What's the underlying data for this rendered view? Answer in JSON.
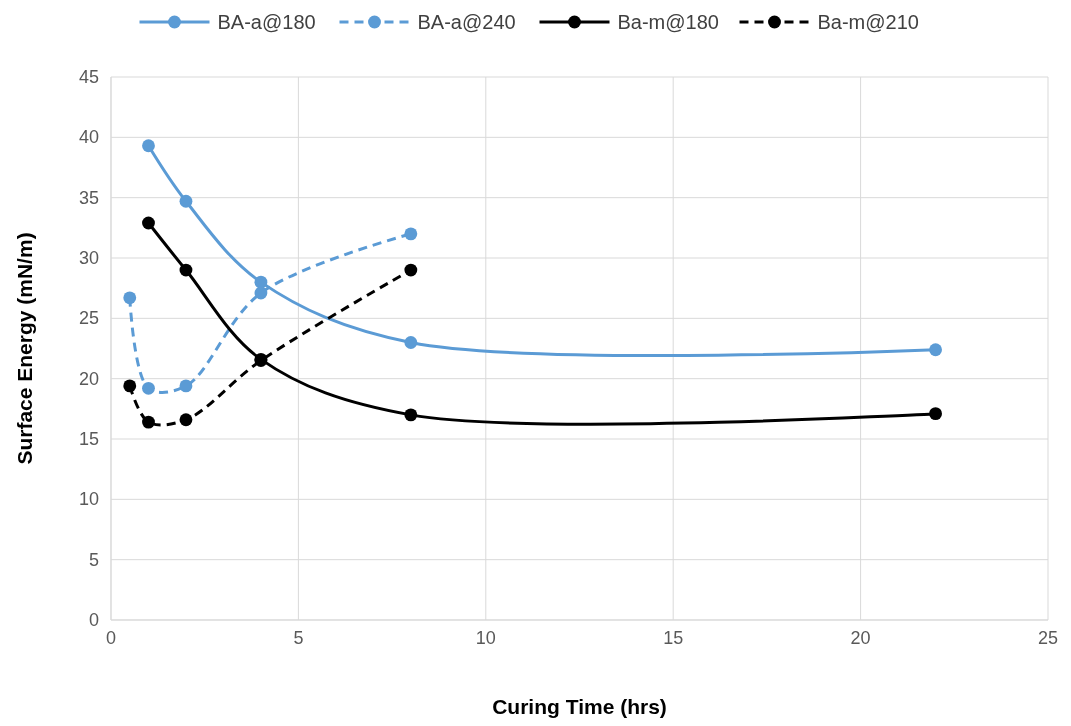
{
  "chart_data": {
    "type": "line",
    "xlabel": "Curing Time (hrs)",
    "ylabel": "Surface Energy (mN/m)",
    "xlim": [
      0,
      25
    ],
    "xticks": [
      0,
      5,
      10,
      15,
      20,
      25
    ],
    "ylim": [
      0,
      45
    ],
    "yticks": [
      0,
      5,
      10,
      15,
      20,
      25,
      30,
      35,
      40,
      45
    ],
    "grid": true,
    "legend": "top",
    "marker": "circle",
    "series": [
      {
        "name": "BA-a@180",
        "color": "#5b9bd5",
        "line_style": "solid",
        "x": [
          1,
          2,
          4,
          8,
          22
        ],
        "values": [
          39.3,
          34.7,
          28.0,
          23.0,
          22.4
        ]
      },
      {
        "name": "BA-a@240",
        "color": "#5b9bd5",
        "line_style": "dashed",
        "x": [
          0.5,
          1,
          2,
          4,
          8
        ],
        "values": [
          26.7,
          19.2,
          19.4,
          27.1,
          32.0
        ]
      },
      {
        "name": "Ba-m@180",
        "color": "#000000",
        "line_style": "solid",
        "x": [
          1,
          2,
          4,
          8,
          22
        ],
        "values": [
          32.9,
          29.0,
          21.6,
          17.0,
          17.1
        ]
      },
      {
        "name": "Ba-m@210",
        "color": "#000000",
        "line_style": "dashed",
        "x": [
          0.5,
          1,
          2,
          4,
          8
        ],
        "values": [
          19.4,
          16.4,
          16.6,
          21.5,
          29.0
        ]
      }
    ]
  }
}
